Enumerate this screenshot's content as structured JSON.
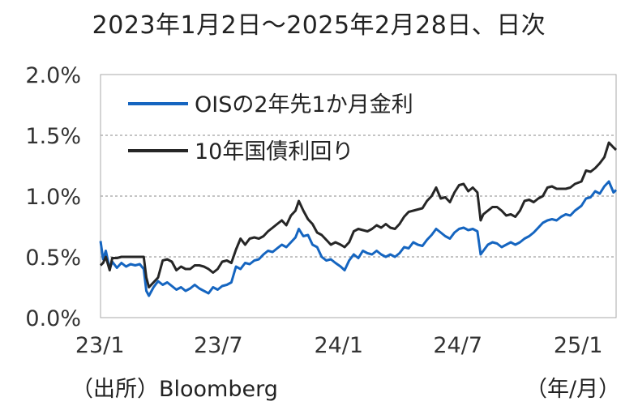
{
  "title": "2023年1月2日～2025年2月28日、日次",
  "source": "（出所）Bloomberg",
  "x_unit": "（年/月）",
  "colors": {
    "ois": "#1565c0",
    "jgb": "#262626",
    "grid": "#888888",
    "frame": "#aaaaaa"
  },
  "chart_data": {
    "type": "line",
    "xlabel": "",
    "ylabel": "",
    "ylim": [
      0,
      2.0
    ],
    "y_ticks": [
      "0.0%",
      "0.5%",
      "1.0%",
      "1.5%",
      "2.0%"
    ],
    "y_tick_values": [
      0,
      0.5,
      1.0,
      1.5,
      2.0
    ],
    "x_range": [
      "2023-01-02",
      "2025-02-28"
    ],
    "x_ticks": [
      {
        "label": "23/1",
        "date": "2023-01"
      },
      {
        "label": "23/7",
        "date": "2023-07"
      },
      {
        "label": "24/1",
        "date": "2024-01"
      },
      {
        "label": "24/7",
        "date": "2024-07"
      },
      {
        "label": "25/1",
        "date": "2025-01"
      }
    ],
    "grid": "horizontal dashed",
    "legend_position": "top-left",
    "series": [
      {
        "name": "OISの2年先1か月金利",
        "color": "#1565c0",
        "points": [
          [
            "2023-01-02",
            0.63
          ],
          [
            "2023-01-06",
            0.48
          ],
          [
            "2023-01-10",
            0.55
          ],
          [
            "2023-01-16",
            0.4
          ],
          [
            "2023-01-20",
            0.46
          ],
          [
            "2023-01-27",
            0.41
          ],
          [
            "2023-02-03",
            0.45
          ],
          [
            "2023-02-10",
            0.42
          ],
          [
            "2023-02-17",
            0.44
          ],
          [
            "2023-02-24",
            0.43
          ],
          [
            "2023-03-03",
            0.44
          ],
          [
            "2023-03-09",
            0.4
          ],
          [
            "2023-03-13",
            0.22
          ],
          [
            "2023-03-17",
            0.18
          ],
          [
            "2023-03-24",
            0.25
          ],
          [
            "2023-03-31",
            0.3
          ],
          [
            "2023-04-07",
            0.27
          ],
          [
            "2023-04-14",
            0.29
          ],
          [
            "2023-04-21",
            0.26
          ],
          [
            "2023-04-28",
            0.23
          ],
          [
            "2023-05-05",
            0.25
          ],
          [
            "2023-05-12",
            0.22
          ],
          [
            "2023-05-19",
            0.24
          ],
          [
            "2023-05-26",
            0.27
          ],
          [
            "2023-06-02",
            0.24
          ],
          [
            "2023-06-09",
            0.22
          ],
          [
            "2023-06-16",
            0.2
          ],
          [
            "2023-06-23",
            0.25
          ],
          [
            "2023-06-30",
            0.23
          ],
          [
            "2023-07-07",
            0.26
          ],
          [
            "2023-07-14",
            0.27
          ],
          [
            "2023-07-21",
            0.29
          ],
          [
            "2023-07-28",
            0.42
          ],
          [
            "2023-08-04",
            0.4
          ],
          [
            "2023-08-11",
            0.45
          ],
          [
            "2023-08-18",
            0.44
          ],
          [
            "2023-08-25",
            0.47
          ],
          [
            "2023-09-01",
            0.48
          ],
          [
            "2023-09-08",
            0.52
          ],
          [
            "2023-09-15",
            0.55
          ],
          [
            "2023-09-22",
            0.54
          ],
          [
            "2023-09-29",
            0.57
          ],
          [
            "2023-10-06",
            0.6
          ],
          [
            "2023-10-13",
            0.58
          ],
          [
            "2023-10-20",
            0.62
          ],
          [
            "2023-10-27",
            0.66
          ],
          [
            "2023-11-01",
            0.73
          ],
          [
            "2023-11-08",
            0.67
          ],
          [
            "2023-11-15",
            0.68
          ],
          [
            "2023-11-22",
            0.6
          ],
          [
            "2023-11-29",
            0.58
          ],
          [
            "2023-12-06",
            0.5
          ],
          [
            "2023-12-13",
            0.47
          ],
          [
            "2023-12-20",
            0.48
          ],
          [
            "2023-12-27",
            0.45
          ],
          [
            "2024-01-04",
            0.42
          ],
          [
            "2024-01-10",
            0.39
          ],
          [
            "2024-01-17",
            0.47
          ],
          [
            "2024-01-24",
            0.52
          ],
          [
            "2024-01-31",
            0.49
          ],
          [
            "2024-02-07",
            0.55
          ],
          [
            "2024-02-14",
            0.53
          ],
          [
            "2024-02-21",
            0.52
          ],
          [
            "2024-02-28",
            0.55
          ],
          [
            "2024-03-06",
            0.52
          ],
          [
            "2024-03-13",
            0.5
          ],
          [
            "2024-03-20",
            0.52
          ],
          [
            "2024-03-27",
            0.5
          ],
          [
            "2024-04-03",
            0.53
          ],
          [
            "2024-04-10",
            0.58
          ],
          [
            "2024-04-17",
            0.57
          ],
          [
            "2024-04-24",
            0.62
          ],
          [
            "2024-05-01",
            0.6
          ],
          [
            "2024-05-08",
            0.59
          ],
          [
            "2024-05-15",
            0.64
          ],
          [
            "2024-05-22",
            0.68
          ],
          [
            "2024-05-29",
            0.73
          ],
          [
            "2024-06-05",
            0.7
          ],
          [
            "2024-06-12",
            0.67
          ],
          [
            "2024-06-19",
            0.65
          ],
          [
            "2024-06-26",
            0.7
          ],
          [
            "2024-07-03",
            0.73
          ],
          [
            "2024-07-10",
            0.74
          ],
          [
            "2024-07-17",
            0.72
          ],
          [
            "2024-07-24",
            0.73
          ],
          [
            "2024-07-31",
            0.71
          ],
          [
            "2024-08-05",
            0.52
          ],
          [
            "2024-08-09",
            0.55
          ],
          [
            "2024-08-16",
            0.6
          ],
          [
            "2024-08-23",
            0.62
          ],
          [
            "2024-08-30",
            0.61
          ],
          [
            "2024-09-06",
            0.58
          ],
          [
            "2024-09-13",
            0.6
          ],
          [
            "2024-09-20",
            0.62
          ],
          [
            "2024-09-27",
            0.6
          ],
          [
            "2024-10-04",
            0.62
          ],
          [
            "2024-10-11",
            0.65
          ],
          [
            "2024-10-18",
            0.67
          ],
          [
            "2024-10-25",
            0.7
          ],
          [
            "2024-11-01",
            0.74
          ],
          [
            "2024-11-08",
            0.78
          ],
          [
            "2024-11-15",
            0.8
          ],
          [
            "2024-11-22",
            0.81
          ],
          [
            "2024-11-29",
            0.8
          ],
          [
            "2024-12-06",
            0.83
          ],
          [
            "2024-12-13",
            0.85
          ],
          [
            "2024-12-20",
            0.84
          ],
          [
            "2024-12-27",
            0.88
          ],
          [
            "2025-01-06",
            0.92
          ],
          [
            "2025-01-13",
            0.98
          ],
          [
            "2025-01-20",
            0.99
          ],
          [
            "2025-01-27",
            1.04
          ],
          [
            "2025-02-03",
            1.02
          ],
          [
            "2025-02-10",
            1.08
          ],
          [
            "2025-02-17",
            1.12
          ],
          [
            "2025-02-24",
            1.03
          ],
          [
            "2025-02-28",
            1.05
          ]
        ]
      },
      {
        "name": "10年国債利回り",
        "color": "#262626",
        "points": [
          [
            "2023-01-02",
            0.43
          ],
          [
            "2023-01-06",
            0.45
          ],
          [
            "2023-01-10",
            0.5
          ],
          [
            "2023-01-16",
            0.39
          ],
          [
            "2023-01-20",
            0.49
          ],
          [
            "2023-01-27",
            0.49
          ],
          [
            "2023-02-03",
            0.5
          ],
          [
            "2023-02-10",
            0.5
          ],
          [
            "2023-02-17",
            0.5
          ],
          [
            "2023-02-24",
            0.5
          ],
          [
            "2023-03-03",
            0.5
          ],
          [
            "2023-03-09",
            0.5
          ],
          [
            "2023-03-13",
            0.33
          ],
          [
            "2023-03-17",
            0.25
          ],
          [
            "2023-03-24",
            0.29
          ],
          [
            "2023-03-31",
            0.33
          ],
          [
            "2023-04-07",
            0.47
          ],
          [
            "2023-04-14",
            0.48
          ],
          [
            "2023-04-21",
            0.46
          ],
          [
            "2023-04-28",
            0.39
          ],
          [
            "2023-05-05",
            0.42
          ],
          [
            "2023-05-12",
            0.4
          ],
          [
            "2023-05-19",
            0.4
          ],
          [
            "2023-05-26",
            0.43
          ],
          [
            "2023-06-02",
            0.43
          ],
          [
            "2023-06-09",
            0.42
          ],
          [
            "2023-06-16",
            0.4
          ],
          [
            "2023-06-23",
            0.37
          ],
          [
            "2023-06-30",
            0.4
          ],
          [
            "2023-07-07",
            0.46
          ],
          [
            "2023-07-14",
            0.47
          ],
          [
            "2023-07-21",
            0.45
          ],
          [
            "2023-07-28",
            0.56
          ],
          [
            "2023-08-04",
            0.65
          ],
          [
            "2023-08-11",
            0.6
          ],
          [
            "2023-08-18",
            0.65
          ],
          [
            "2023-08-25",
            0.66
          ],
          [
            "2023-09-01",
            0.65
          ],
          [
            "2023-09-08",
            0.67
          ],
          [
            "2023-09-15",
            0.71
          ],
          [
            "2023-09-22",
            0.74
          ],
          [
            "2023-09-29",
            0.77
          ],
          [
            "2023-10-06",
            0.8
          ],
          [
            "2023-10-13",
            0.76
          ],
          [
            "2023-10-20",
            0.84
          ],
          [
            "2023-10-27",
            0.88
          ],
          [
            "2023-11-01",
            0.96
          ],
          [
            "2023-11-08",
            0.88
          ],
          [
            "2023-11-15",
            0.81
          ],
          [
            "2023-11-22",
            0.77
          ],
          [
            "2023-11-29",
            0.7
          ],
          [
            "2023-12-06",
            0.68
          ],
          [
            "2023-12-13",
            0.64
          ],
          [
            "2023-12-20",
            0.6
          ],
          [
            "2023-12-27",
            0.62
          ],
          [
            "2024-01-04",
            0.6
          ],
          [
            "2024-01-10",
            0.58
          ],
          [
            "2024-01-17",
            0.62
          ],
          [
            "2024-01-24",
            0.71
          ],
          [
            "2024-01-31",
            0.73
          ],
          [
            "2024-02-07",
            0.72
          ],
          [
            "2024-02-14",
            0.71
          ],
          [
            "2024-02-21",
            0.73
          ],
          [
            "2024-02-28",
            0.76
          ],
          [
            "2024-03-06",
            0.74
          ],
          [
            "2024-03-13",
            0.77
          ],
          [
            "2024-03-20",
            0.74
          ],
          [
            "2024-03-27",
            0.73
          ],
          [
            "2024-04-03",
            0.77
          ],
          [
            "2024-04-10",
            0.83
          ],
          [
            "2024-04-17",
            0.87
          ],
          [
            "2024-04-24",
            0.88
          ],
          [
            "2024-05-01",
            0.89
          ],
          [
            "2024-05-08",
            0.9
          ],
          [
            "2024-05-15",
            0.96
          ],
          [
            "2024-05-22",
            1.0
          ],
          [
            "2024-05-29",
            1.07
          ],
          [
            "2024-06-05",
            0.98
          ],
          [
            "2024-06-12",
            0.99
          ],
          [
            "2024-06-19",
            0.95
          ],
          [
            "2024-06-26",
            1.03
          ],
          [
            "2024-07-03",
            1.09
          ],
          [
            "2024-07-10",
            1.1
          ],
          [
            "2024-07-17",
            1.04
          ],
          [
            "2024-07-24",
            1.07
          ],
          [
            "2024-07-31",
            1.03
          ],
          [
            "2024-08-05",
            0.8
          ],
          [
            "2024-08-09",
            0.85
          ],
          [
            "2024-08-16",
            0.88
          ],
          [
            "2024-08-23",
            0.91
          ],
          [
            "2024-08-30",
            0.91
          ],
          [
            "2024-09-06",
            0.88
          ],
          [
            "2024-09-13",
            0.84
          ],
          [
            "2024-09-20",
            0.85
          ],
          [
            "2024-09-27",
            0.83
          ],
          [
            "2024-10-04",
            0.88
          ],
          [
            "2024-10-11",
            0.96
          ],
          [
            "2024-10-18",
            0.97
          ],
          [
            "2024-10-25",
            0.95
          ],
          [
            "2024-11-01",
            0.98
          ],
          [
            "2024-11-08",
            1.0
          ],
          [
            "2024-11-15",
            1.07
          ],
          [
            "2024-11-22",
            1.08
          ],
          [
            "2024-11-29",
            1.06
          ],
          [
            "2024-12-06",
            1.06
          ],
          [
            "2024-12-13",
            1.06
          ],
          [
            "2024-12-20",
            1.07
          ],
          [
            "2024-12-27",
            1.1
          ],
          [
            "2025-01-06",
            1.12
          ],
          [
            "2025-01-13",
            1.21
          ],
          [
            "2025-01-20",
            1.2
          ],
          [
            "2025-01-27",
            1.23
          ],
          [
            "2025-02-03",
            1.27
          ],
          [
            "2025-02-10",
            1.32
          ],
          [
            "2025-02-17",
            1.44
          ],
          [
            "2025-02-24",
            1.4
          ],
          [
            "2025-02-28",
            1.38
          ]
        ]
      }
    ]
  }
}
